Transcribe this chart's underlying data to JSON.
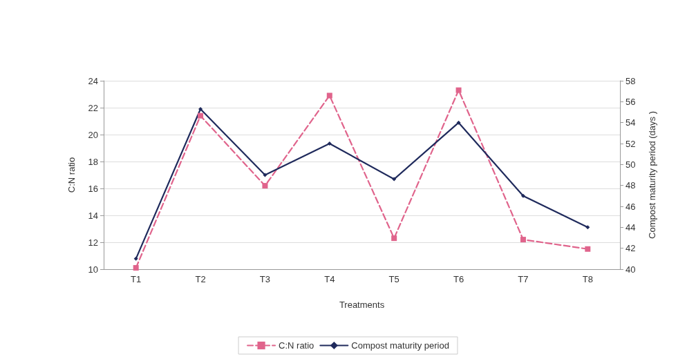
{
  "chart_data": {
    "type": "line",
    "xlabel": "Treatments",
    "ylabel": "C:N ratio",
    "y2label": "Compost maturity period (days )",
    "categories": [
      "T1",
      "T2",
      "T3",
      "T4",
      "T5",
      "T6",
      "T7",
      "T8"
    ],
    "series": [
      {
        "name": "C:N ratio",
        "color": "#e0648c",
        "marker": "square",
        "line_style": "dashed",
        "values": [
          10.1,
          21.4,
          16.2,
          22.9,
          12.3,
          23.3,
          12.2,
          11.5
        ]
      },
      {
        "name": "Compost maturity period",
        "color": "#1f2a5c",
        "marker": "diamond",
        "line_style": "solid",
        "axis": "y2",
        "values": [
          41,
          55.3,
          49,
          52,
          48.6,
          54,
          47,
          44
        ]
      }
    ],
    "ylim": [
      10,
      24
    ],
    "yticks": [
      10,
      12,
      14,
      16,
      18,
      20,
      22,
      24
    ],
    "y2lim": [
      40,
      58
    ],
    "y2ticks": [
      40,
      42,
      44,
      46,
      48,
      50,
      52,
      54,
      56,
      58
    ],
    "grid": "y",
    "legend": "bottom"
  }
}
